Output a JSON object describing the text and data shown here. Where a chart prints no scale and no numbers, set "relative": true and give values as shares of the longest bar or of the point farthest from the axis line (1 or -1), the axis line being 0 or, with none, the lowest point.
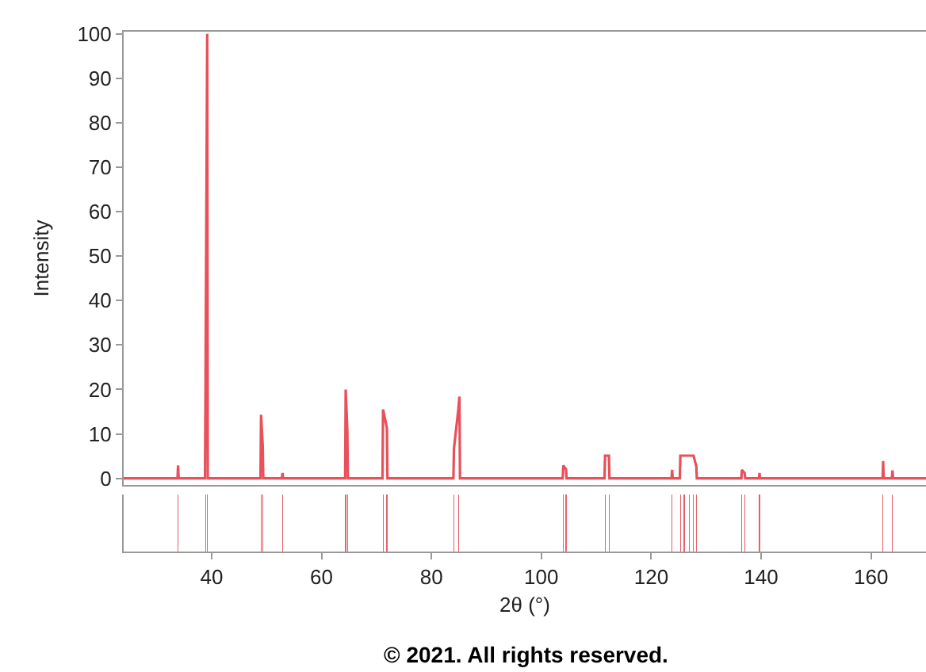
{
  "chart_data": [
    {
      "type": "line",
      "ylabel": "Intensity",
      "tick_labels": "y",
      "grid": false,
      "marker": "none",
      "line_style": "solid",
      "xlim": [
        24,
        170
      ],
      "ylim": [
        -1.5,
        100.5
      ],
      "yticks": [
        0,
        10,
        20,
        30,
        40,
        50,
        60,
        70,
        80,
        90,
        100
      ],
      "series": [
        {
          "color": "#e8505a",
          "x": [
            24,
            33.8,
            33.9,
            34.0,
            38.8,
            38.9,
            39.2,
            39.3,
            48.9,
            49.0,
            49.3,
            49.4,
            52.8,
            52.9,
            53.0,
            64.3,
            64.4,
            64.7,
            64.8,
            71.1,
            71.2,
            71.9,
            72.0,
            84.0,
            84.1,
            84.9,
            85.1,
            85.2,
            103.9,
            104.0,
            104.5,
            104.6,
            111.5,
            111.6,
            112.3,
            112.4,
            123.7,
            123.8,
            123.9,
            125.2,
            125.3,
            126.0,
            126.9,
            127.7,
            128.2,
            128.3,
            136.4,
            136.5,
            137.0,
            137.1,
            139.6,
            139.7,
            139.8,
            162.1,
            162.2,
            162.3,
            163.8,
            163.9,
            164.0,
            170
          ],
          "values": [
            0,
            0,
            2.9,
            0,
            0,
            22.7,
            100,
            0,
            0,
            14.3,
            7.4,
            0,
            0,
            1.2,
            0,
            0,
            20.0,
            10.6,
            0,
            0,
            15.5,
            11.3,
            0,
            0,
            6.7,
            15.5,
            18.4,
            0,
            0,
            2.9,
            2.0,
            0,
            0,
            5.1,
            5.1,
            0,
            0,
            1.9,
            0,
            0,
            5.1,
            5.1,
            5.1,
            5.1,
            2.7,
            0,
            0,
            1.9,
            1.2,
            0,
            0,
            1.2,
            0,
            0,
            3.9,
            0,
            0,
            1.8,
            0,
            0
          ]
        }
      ]
    },
    {
      "type": "bar",
      "relative": true,
      "xlabel": "2θ (°)",
      "tick_labels": "x",
      "grid": false,
      "xlim": [
        24,
        170
      ],
      "xticks": [
        40,
        60,
        80,
        100,
        120,
        140,
        160
      ],
      "annotations": [
        "© 2021. All rights reserved."
      ],
      "series": [
        {
          "color": "#e8606a",
          "x": [
            33.9,
            38.9,
            39.2,
            49.0,
            49.3,
            52.9,
            64.4,
            64.7,
            71.2,
            71.9,
            84.1,
            85.0,
            104.0,
            104.5,
            111.6,
            112.3,
            123.8,
            125.3,
            126.0,
            126.9,
            127.7,
            128.2,
            136.5,
            137.0,
            139.7,
            162.2,
            163.9
          ],
          "values": [
            1,
            1,
            1,
            1,
            1,
            1,
            1,
            1,
            1,
            1,
            1,
            1,
            1,
            1,
            1,
            1,
            1,
            1,
            1,
            1,
            1,
            1,
            1,
            1,
            1,
            1,
            1
          ]
        }
      ]
    }
  ]
}
